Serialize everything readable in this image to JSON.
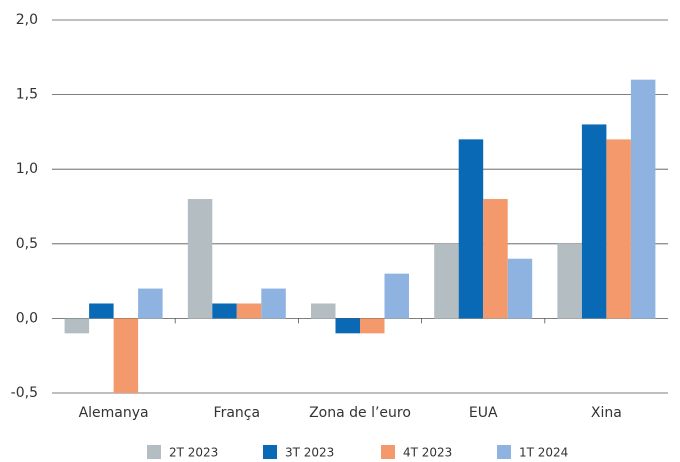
{
  "chart_data": {
    "type": "bar",
    "categories": [
      "Alemanya",
      "França",
      "Zona de l’euro",
      "EUA",
      "Xina"
    ],
    "series": [
      {
        "name": "2T 2023",
        "color": "#b4bec2",
        "values": [
          -0.1,
          0.8,
          0.1,
          0.5,
          0.5
        ]
      },
      {
        "name": "3T 2023",
        "color": "#0a69b4",
        "values": [
          0.1,
          0.1,
          -0.1,
          1.2,
          1.3
        ]
      },
      {
        "name": "4T 2023",
        "color": "#f4996b",
        "values": [
          -0.5,
          0.1,
          -0.1,
          0.8,
          1.2
        ]
      },
      {
        "name": "1T 2024",
        "color": "#8fb3e0",
        "values": [
          0.2,
          0.2,
          0.3,
          0.4,
          1.6
        ]
      }
    ],
    "ylim": [
      -0.5,
      2.0
    ],
    "yticks": [
      {
        "value": -0.5,
        "label": "-0,5"
      },
      {
        "value": 0,
        "label": "0,0"
      },
      {
        "value": 0.5,
        "label": "0,5"
      },
      {
        "value": 1.0,
        "label": "1,0"
      },
      {
        "value": 1.5,
        "label": "1,5"
      },
      {
        "value": 2.0,
        "label": "2,0"
      }
    ],
    "grid": true
  }
}
